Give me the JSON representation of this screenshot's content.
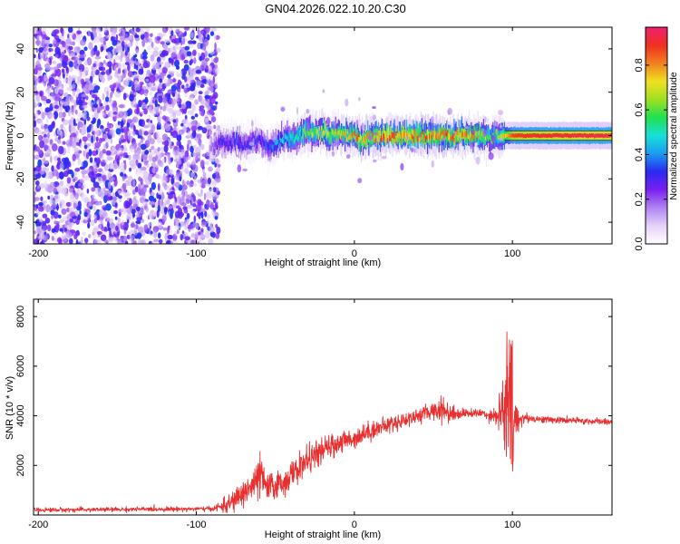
{
  "title": "GN04.2026.022.10.20.C30",
  "chart_data": [
    {
      "type": "heatmap",
      "name": "spectrogram",
      "xlabel": "Height of straight line (km)",
      "ylabel": "Frequency (Hz)",
      "xlim": [
        -203,
        163
      ],
      "ylim": [
        -50,
        50
      ],
      "x_ticks": [
        -200,
        -100,
        0,
        100
      ],
      "x_tick_labels": [
        "-200",
        "-100",
        "0",
        "100"
      ],
      "y_ticks": [
        -40,
        -20,
        0,
        20,
        40
      ],
      "y_tick_labels": [
        "-40",
        "-20",
        "0",
        "20",
        "40"
      ],
      "colorbar": {
        "label": "Normalized spectral amplitude",
        "range": [
          0,
          0.97
        ],
        "ticks": [
          0.0,
          0.2,
          0.4,
          0.6,
          0.8
        ],
        "tick_labels": [
          "0.0",
          "0.2",
          "0.4",
          "0.6",
          "0.8"
        ],
        "colormap": [
          "#ffffff",
          "#e6d2f8",
          "#b084f0",
          "#7a1ff0",
          "#2a2af0",
          "#1a9cf0",
          "#18e0d8",
          "#20e050",
          "#a0e020",
          "#f0e020",
          "#f08020",
          "#f03020",
          "#f02070"
        ]
      },
      "noise_region_x": [
        -203,
        -86
      ],
      "ridge": {
        "x": [
          -92,
          -85,
          -80,
          -75,
          -70,
          -65,
          -60,
          -55,
          -50,
          -45,
          -40,
          -35,
          -30,
          -25,
          -20,
          -15,
          -10,
          -5,
          0,
          5,
          10,
          20,
          30,
          40,
          50,
          60,
          70,
          80,
          85,
          90,
          95,
          100,
          110,
          120,
          130,
          140,
          150,
          163
        ],
        "freq": [
          -6,
          -3,
          -4,
          -2,
          -5,
          -3,
          -2,
          -6,
          -4,
          -1,
          -2,
          0,
          2,
          1,
          2,
          0,
          1,
          0,
          0,
          -2,
          0,
          0,
          0,
          0,
          0,
          0,
          0,
          0,
          -1,
          -1,
          0,
          0,
          0,
          0,
          0,
          0,
          0,
          0
        ],
        "amplitude": [
          0.15,
          0.3,
          0.3,
          0.35,
          0.3,
          0.35,
          0.3,
          0.35,
          0.4,
          0.45,
          0.5,
          0.55,
          0.6,
          0.65,
          0.7,
          0.65,
          0.7,
          0.75,
          0.8,
          0.8,
          0.8,
          0.85,
          0.85,
          0.85,
          0.85,
          0.85,
          0.8,
          0.7,
          0.6,
          0.6,
          0.75,
          0.9,
          0.92,
          0.93,
          0.94,
          0.95,
          0.95,
          0.95
        ]
      }
    },
    {
      "type": "line",
      "name": "snr-trace",
      "xlabel": "Height of straight line (km)",
      "ylabel": "SNR (10 * v/v)",
      "xlim": [
        -203,
        163
      ],
      "ylim": [
        0,
        8700
      ],
      "x_ticks": [
        -200,
        -100,
        0,
        100
      ],
      "x_tick_labels": [
        "-200",
        "-100",
        "0",
        "100"
      ],
      "y_ticks": [
        2000,
        4000,
        6000,
        8000
      ],
      "y_tick_labels": [
        "2000",
        "4000",
        "6000",
        "8000"
      ],
      "line_color": "#e83030",
      "envelope": {
        "x": [
          -203,
          -90,
          -80,
          -70,
          -62,
          -60,
          -55,
          -50,
          -45,
          -40,
          -30,
          -20,
          -10,
          0,
          10,
          20,
          30,
          40,
          50,
          55,
          60,
          70,
          80,
          90,
          95,
          98,
          100,
          102,
          105,
          110,
          120,
          140,
          163
        ],
        "mean": [
          200,
          250,
          400,
          900,
          1300,
          1600,
          1100,
          1200,
          1300,
          1600,
          2200,
          2600,
          2900,
          3100,
          3400,
          3600,
          3800,
          4000,
          4200,
          4300,
          4100,
          4100,
          4100,
          4000,
          4200,
          4500,
          3800,
          3800,
          3900,
          3900,
          3850,
          3800,
          3750
        ],
        "spread": [
          80,
          80,
          300,
          500,
          700,
          800,
          500,
          500,
          500,
          500,
          500,
          450,
          400,
          350,
          350,
          300,
          300,
          250,
          300,
          500,
          350,
          150,
          150,
          300,
          1800,
          3500,
          3000,
          800,
          300,
          150,
          120,
          120,
          120
        ]
      }
    }
  ]
}
